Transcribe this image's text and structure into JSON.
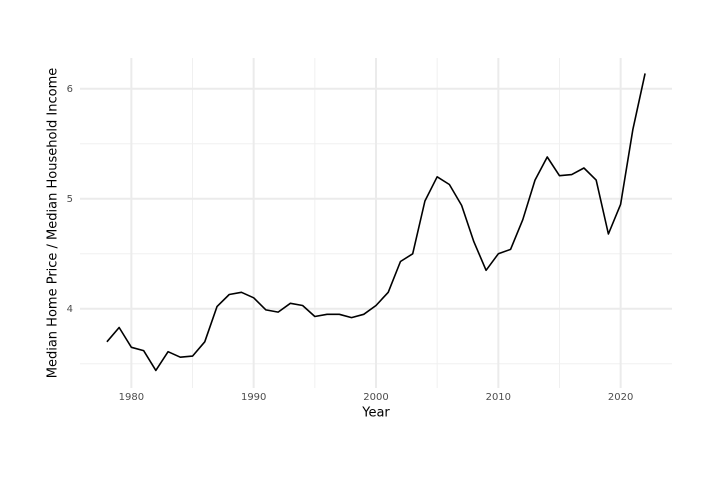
{
  "chart_data": {
    "type": "line",
    "x_label": "Year",
    "y_label": "Median Home Price / Median Household Income",
    "x": [
      1978,
      1979,
      1980,
      1981,
      1982,
      1983,
      1984,
      1985,
      1986,
      1987,
      1988,
      1989,
      1990,
      1991,
      1992,
      1993,
      1994,
      1995,
      1996,
      1997,
      1998,
      1999,
      2000,
      2001,
      2002,
      2003,
      2004,
      2005,
      2006,
      2007,
      2008,
      2009,
      2010,
      2011,
      2012,
      2013,
      2014,
      2015,
      2016,
      2017,
      2018,
      2019,
      2020,
      2021,
      2022
    ],
    "values": [
      3.7,
      3.83,
      3.65,
      3.62,
      3.44,
      3.61,
      3.56,
      3.57,
      3.7,
      4.02,
      4.13,
      4.15,
      4.1,
      3.99,
      3.97,
      4.05,
      4.03,
      3.93,
      3.95,
      3.95,
      3.92,
      3.95,
      4.03,
      4.15,
      4.43,
      4.5,
      4.98,
      5.2,
      5.13,
      4.94,
      4.61,
      4.35,
      4.5,
      4.54,
      4.81,
      5.17,
      5.38,
      5.21,
      5.22,
      5.28,
      5.17,
      4.68,
      4.95,
      5.63,
      6.14
    ],
    "color": "#000000",
    "xlim": [
      1975.8,
      2024.2
    ],
    "ylim": [
      3.28,
      6.28
    ],
    "xticks": [
      1980,
      1990,
      2000,
      2010,
      2020
    ],
    "yticks": [
      4,
      5,
      6
    ],
    "xminorticks": [
      1985,
      1995,
      2005,
      2015
    ],
    "yminorticks": [
      3.5,
      4.5,
      5.5
    ],
    "grid": true
  }
}
